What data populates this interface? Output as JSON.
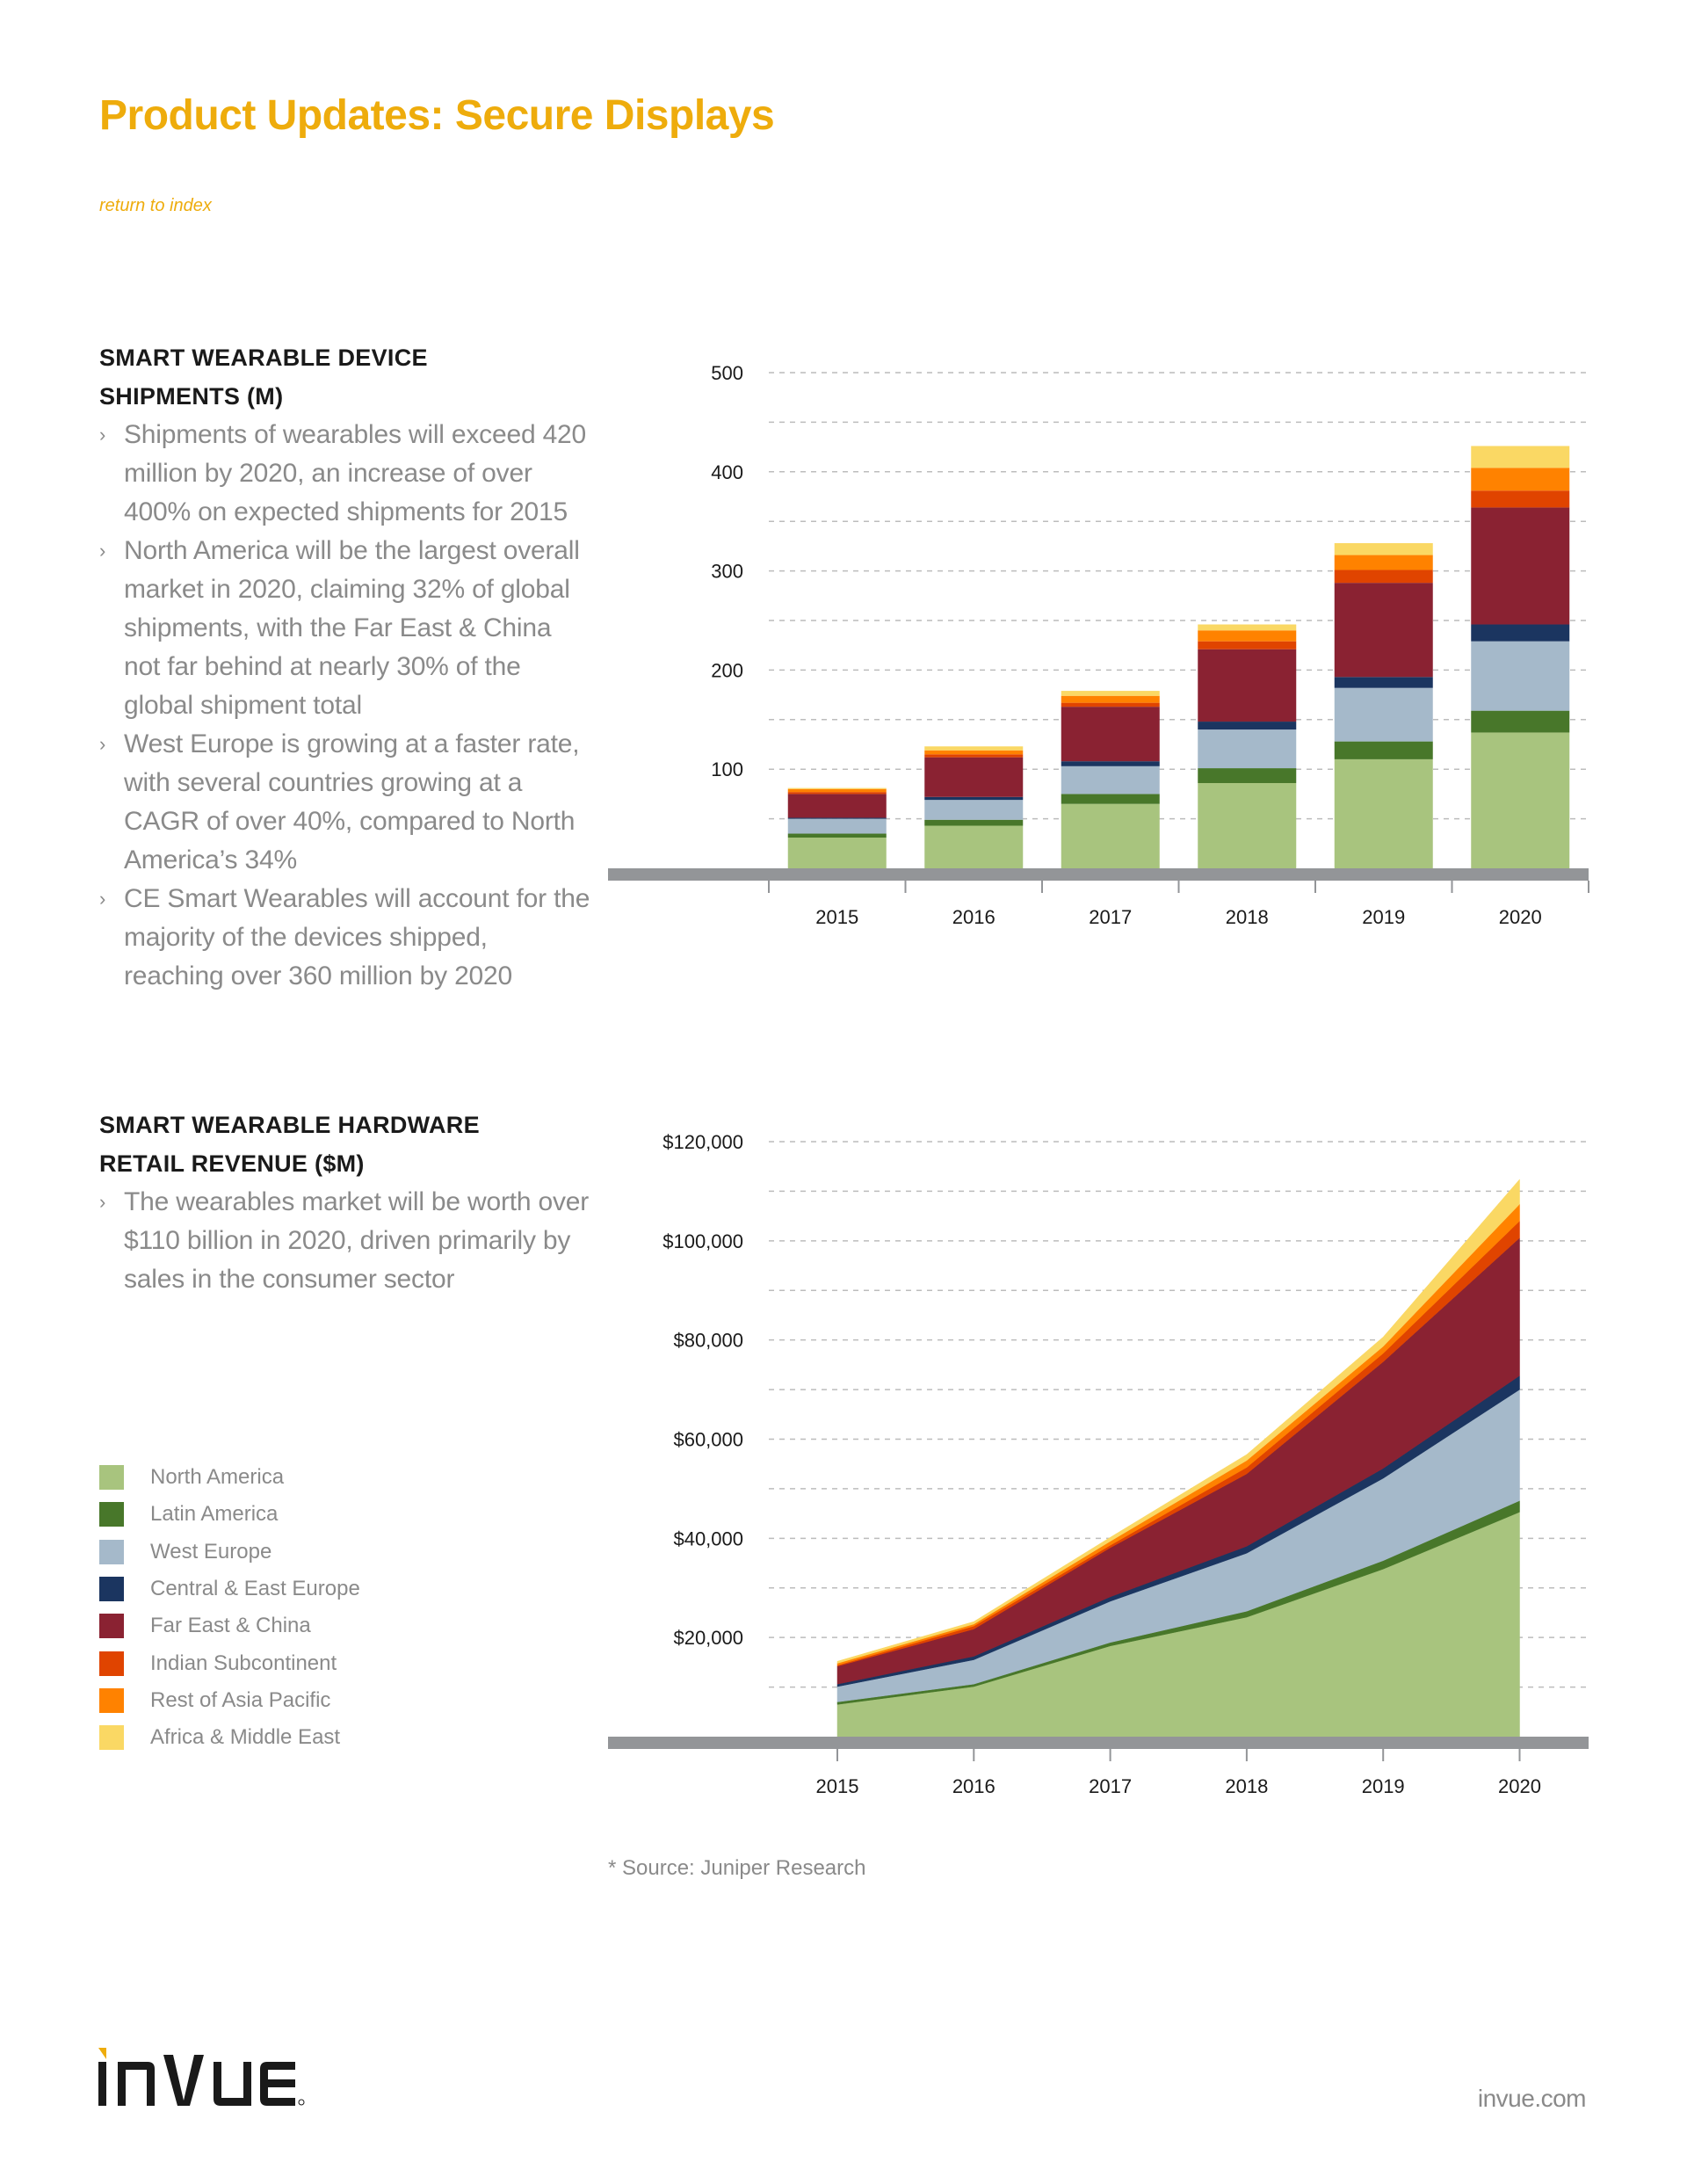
{
  "header": {
    "title": "Product Updates: Secure Displays",
    "return_link": "return to index",
    "accent_color": "#EEAC0C"
  },
  "sections": [
    {
      "heading_line1": "SMART WEARABLE DEVICE",
      "heading_line2": "SHIPMENTS (M)",
      "bullets": [
        " Shipments of wearables will exceed 420 million by 2020, an increase of over 400% on expected shipments for 2015",
        "North America will be the largest overall market in 2020, claiming 32% of global shipments, with the Far East & China not far behind at nearly 30% of the global shipment total",
        "West Europe is growing at a faster rate, with several countries growing at a CAGR of over 40%, compared to North America’s 34%",
        "CE Smart Wearables will account for the majority of the devices shipped, reaching over 360 million by 2020"
      ]
    },
    {
      "heading_line1": "SMART WEARABLE HARDWARE",
      "heading_line2": "RETAIL REVENUE ($M)",
      "bullets": [
        "The wearables market will be worth over $110 billion in 2020, driven primarily by sales in the consumer sector"
      ]
    }
  ],
  "bullet_icon": "chevron-right-icon",
  "legend": [
    {
      "label": "North America",
      "color": "#A8C47E"
    },
    {
      "label": "Latin America",
      "color": "#48772A"
    },
    {
      "label": "West Europe",
      "color": "#A5B9CA"
    },
    {
      "label": "Central & East Europe",
      "color": "#1B3560"
    },
    {
      "label": "Far East & China",
      "color": "#8A2232"
    },
    {
      "label": "Indian Subcontinent",
      "color": "#E04400"
    },
    {
      "label": "Rest of Asia Pacific",
      "color": "#FF8200"
    },
    {
      "label": "Africa & Middle East",
      "color": "#FAD864"
    }
  ],
  "source_note": "* Source: Juniper Research",
  "footer": {
    "logo_text": "InVue",
    "site_url": "invue.com"
  },
  "chart_data": [
    {
      "type": "bar",
      "stacked": true,
      "title": "Smart Wearable Device Shipments (M)",
      "xlabel": "",
      "ylabel": "",
      "categories": [
        "2015",
        "2016",
        "2017",
        "2018",
        "2019",
        "2020"
      ],
      "ylim": [
        0,
        500
      ],
      "yticks": [
        100,
        200,
        300,
        400,
        500
      ],
      "ytick_labels": [
        "100",
        "200",
        "300",
        "400",
        "500"
      ],
      "gridlines_every": 50,
      "grid": true,
      "legend": "left",
      "series": [
        {
          "name": "North America",
          "color": "#A8C47E",
          "values": [
            31,
            43,
            65,
            86,
            110,
            137
          ]
        },
        {
          "name": "Latin America",
          "color": "#48772A",
          "values": [
            4,
            6,
            10,
            15,
            18,
            22
          ]
        },
        {
          "name": "West Europe",
          "color": "#A5B9CA",
          "values": [
            15,
            20,
            28,
            39,
            54,
            70
          ]
        },
        {
          "name": "Central & East Europe",
          "color": "#1B3560",
          "values": [
            1,
            3,
            5,
            8,
            11,
            17
          ]
        },
        {
          "name": "Far East & China",
          "color": "#8A2232",
          "values": [
            24,
            40,
            55,
            73,
            95,
            118
          ]
        },
        {
          "name": "Indian Subcontinent",
          "color": "#E04400",
          "values": [
            2,
            3,
            4,
            8,
            13,
            17
          ]
        },
        {
          "name": "Rest of Asia Pacific",
          "color": "#FF8200",
          "values": [
            3,
            4,
            7,
            11,
            15,
            23
          ]
        },
        {
          "name": "Africa & Middle East",
          "color": "#FAD864",
          "values": [
            1,
            4,
            5,
            6,
            12,
            22
          ]
        }
      ]
    },
    {
      "type": "area",
      "stacked": true,
      "title": "Smart Wearable Hardware Retail Revenue ($M)",
      "xlabel": "",
      "ylabel": "",
      "x": [
        "2015",
        "2016",
        "2017",
        "2018",
        "2019",
        "2020"
      ],
      "ylim": [
        0,
        120000
      ],
      "yticks": [
        20000,
        40000,
        60000,
        80000,
        100000,
        120000
      ],
      "ytick_labels": [
        "$20,000",
        "$40,000",
        "$60,000",
        "$80,000",
        "$100,000",
        "$120,000"
      ],
      "gridlines_every": 10000,
      "grid": true,
      "legend": "left",
      "series": [
        {
          "name": "North America",
          "color": "#A8C47E",
          "values": [
            6500,
            10100,
            18300,
            24100,
            33800,
            45300
          ]
        },
        {
          "name": "Latin America",
          "color": "#48772A",
          "values": [
            500,
            500,
            700,
            1200,
            1700,
            2300
          ]
        },
        {
          "name": "West Europe",
          "color": "#A5B9CA",
          "values": [
            3100,
            4900,
            8300,
            11700,
            16600,
            22400
          ]
        },
        {
          "name": "Central & East Europe",
          "color": "#1B3560",
          "values": [
            500,
            700,
            900,
            1400,
            2000,
            2800
          ]
        },
        {
          "name": "Far East & China",
          "color": "#8A2232",
          "values": [
            3600,
            5500,
            9900,
            14600,
            21500,
            27800
          ]
        },
        {
          "name": "Indian Subcontinent",
          "color": "#E04400",
          "values": [
            200,
            600,
            500,
            1300,
            1700,
            3400
          ]
        },
        {
          "name": "Rest of Asia Pacific",
          "color": "#FF8200",
          "values": [
            400,
            400,
            800,
            1400,
            1400,
            3400
          ]
        },
        {
          "name": "Africa & Middle East",
          "color": "#FAD864",
          "values": [
            400,
            500,
            800,
            1200,
            1900,
            5000
          ]
        }
      ]
    }
  ]
}
